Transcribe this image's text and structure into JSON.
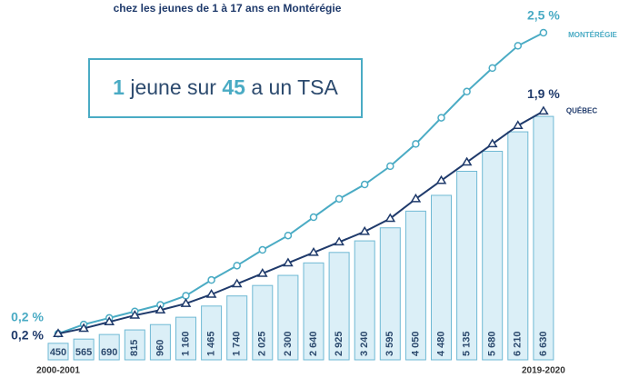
{
  "chart_data": {
    "type": "bar",
    "title": "chez les jeunes de 1 à 17 ans en Montérégie",
    "callout": [
      "1",
      "jeune sur",
      "45",
      "a un TSA"
    ],
    "categories": [
      "2000-2001",
      null,
      null,
      null,
      null,
      null,
      null,
      null,
      null,
      null,
      null,
      null,
      null,
      null,
      null,
      null,
      null,
      null,
      null,
      "2019-2020"
    ],
    "values": [
      450,
      565,
      690,
      815,
      960,
      1160,
      1465,
      1740,
      2025,
      2300,
      2640,
      2925,
      3240,
      3595,
      4050,
      4480,
      5135,
      5680,
      6210,
      6630
    ],
    "value_labels": [
      "450",
      "565",
      "690",
      "815",
      "960",
      "1 160",
      "1 465",
      "1 740",
      "2 025",
      "2 300",
      "2 640",
      "2 925",
      "3 240",
      "3 595",
      "4 050",
      "4 480",
      "5 135",
      "5 680",
      "6 210",
      "6 630"
    ],
    "color": "#dbeff7",
    "ylim": [
      0,
      9800
    ],
    "y2lim": [
      0,
      2.75
    ],
    "series": [
      {
        "name": "MONTÉRÉGIE",
        "color": "#4aabc4",
        "axis": "y2",
        "type": "line",
        "values": [
          0.2,
          0.27,
          0.32,
          0.37,
          0.42,
          0.49,
          0.61,
          0.72,
          0.84,
          0.95,
          1.09,
          1.23,
          1.34,
          1.48,
          1.65,
          1.85,
          2.05,
          2.23,
          2.4,
          2.5
        ],
        "value_labels": [
          "0,2 %",
          null,
          null,
          null,
          null,
          null,
          null,
          null,
          null,
          null,
          null,
          null,
          null,
          null,
          null,
          null,
          null,
          null,
          null,
          "2,5 %"
        ]
      },
      {
        "name": "QUÉBEC",
        "color": "#1f3a6b",
        "axis": "y2",
        "type": "line",
        "values": [
          0.2,
          0.24,
          0.29,
          0.34,
          0.38,
          0.43,
          0.5,
          0.58,
          0.66,
          0.74,
          0.82,
          0.9,
          0.98,
          1.08,
          1.23,
          1.37,
          1.51,
          1.65,
          1.79,
          1.9
        ],
        "value_labels": [
          "0,2 %",
          null,
          null,
          null,
          null,
          null,
          null,
          null,
          null,
          null,
          null,
          null,
          null,
          null,
          null,
          null,
          null,
          null,
          null,
          "1,9 %"
        ]
      }
    ]
  }
}
